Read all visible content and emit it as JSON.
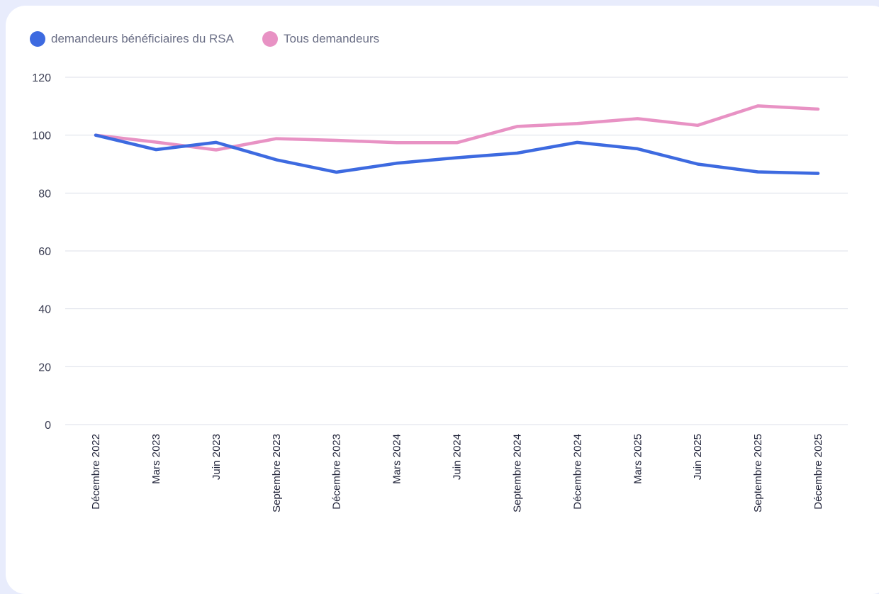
{
  "chart_data": {
    "type": "line",
    "x": [
      "Décembre 2022",
      "Mars 2023",
      "Juin 2023",
      "Septembre 2023",
      "Décembre 2023",
      "Mars 2024",
      "Juin 2024",
      "Septembre 2024",
      "Décembre 2024",
      "Mars 2025",
      "Juin 2025",
      "Septembre 2025",
      "Décembre 2025"
    ],
    "series": [
      {
        "name": "demandeurs bénéficiaires du RSA",
        "color": "#3d6ae0",
        "values": [
          100,
          95,
          97.5,
          91.5,
          87.2,
          90.3,
          92.2,
          93.8,
          97.5,
          95.3,
          90,
          87.3,
          86.8
        ]
      },
      {
        "name": "Tous demandeurs",
        "color": "#e892c4",
        "values": [
          100,
          97.6,
          94.9,
          98.8,
          98.2,
          97.4,
          97.4,
          103,
          104,
          105.7,
          103.4,
          110.1,
          109
        ]
      }
    ],
    "yticks": [
      0,
      20,
      40,
      60,
      80,
      100,
      120
    ],
    "ylim": [
      0,
      120
    ],
    "grid": true,
    "legend_position": "top-left"
  }
}
